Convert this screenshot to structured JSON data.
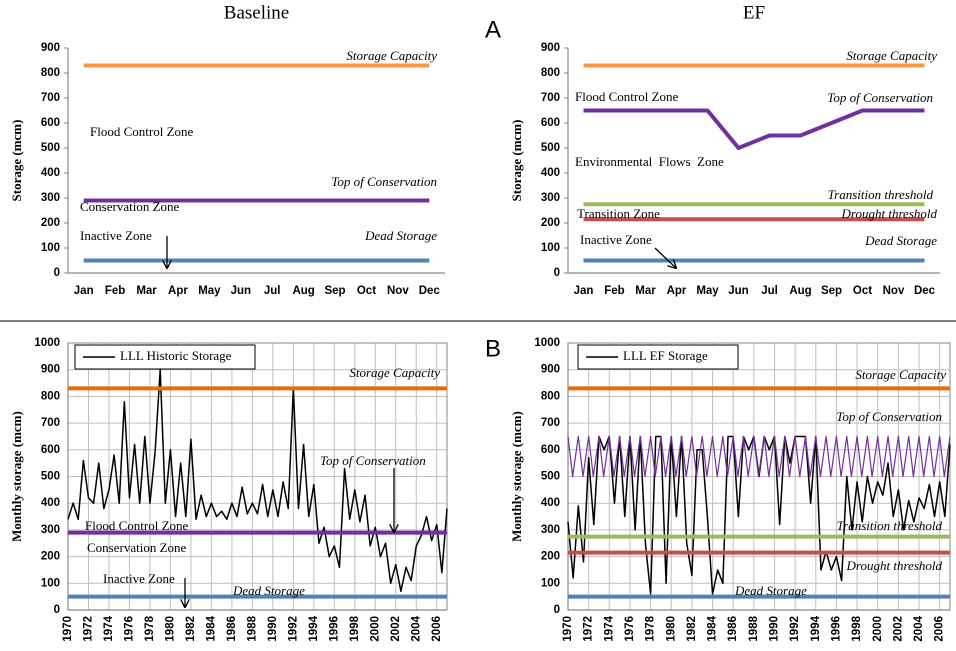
{
  "panel_labels": [
    "A",
    "B"
  ],
  "chart_data": [
    {
      "type": "line",
      "title": "Baseline",
      "y_label": "Storage (mcm)",
      "categories": [
        "Jan",
        "Feb",
        "Mar",
        "Apr",
        "May",
        "Jun",
        "Jul",
        "Aug",
        "Sep",
        "Oct",
        "Nov",
        "Dec"
      ],
      "ylim": [
        0,
        900
      ],
      "yticks": [
        0,
        100,
        200,
        300,
        400,
        500,
        600,
        700,
        800,
        900
      ],
      "grid": false,
      "series": [
        {
          "name": "Storage Capacity",
          "color": "#f79646",
          "values": [
            830,
            830,
            830,
            830,
            830,
            830,
            830,
            830,
            830,
            830,
            830,
            830
          ]
        },
        {
          "name": "Top of Conservation",
          "color": "#7030a0",
          "values": [
            290,
            290,
            290,
            290,
            290,
            290,
            290,
            290,
            290,
            290,
            290,
            290
          ]
        },
        {
          "name": "Dead Storage",
          "color": "#4f81bd",
          "values": [
            50,
            50,
            50,
            50,
            50,
            50,
            50,
            50,
            50,
            50,
            50,
            50
          ]
        }
      ],
      "annotations": [
        "Flood Control Zone",
        "Conservation Zone",
        "Inactive Zone"
      ]
    },
    {
      "type": "line",
      "title": "EF",
      "y_label": "Storage (mcm)",
      "categories": [
        "Jan",
        "Feb",
        "Mar",
        "Apr",
        "May",
        "Jun",
        "Jul",
        "Aug",
        "Sep",
        "Oct",
        "Nov",
        "Dec"
      ],
      "ylim": [
        0,
        900
      ],
      "yticks": [
        0,
        100,
        200,
        300,
        400,
        500,
        600,
        700,
        800,
        900
      ],
      "grid": false,
      "series": [
        {
          "name": "Storage Capacity",
          "color": "#f79646",
          "values": [
            830,
            830,
            830,
            830,
            830,
            830,
            830,
            830,
            830,
            830,
            830,
            830
          ]
        },
        {
          "name": "Top of Conservation",
          "color": "#7030a0",
          "values": [
            650,
            650,
            650,
            650,
            650,
            500,
            550,
            550,
            600,
            650,
            650,
            650
          ]
        },
        {
          "name": "Transition threshold",
          "color": "#9bbb59",
          "values": [
            275,
            275,
            275,
            275,
            275,
            275,
            275,
            275,
            275,
            275,
            275,
            275
          ]
        },
        {
          "name": "Drought threshold",
          "color": "#c0504d",
          "values": [
            215,
            215,
            215,
            215,
            215,
            215,
            215,
            215,
            215,
            215,
            215,
            215
          ]
        },
        {
          "name": "Dead Storage",
          "color": "#4f81bd",
          "values": [
            50,
            50,
            50,
            50,
            50,
            50,
            50,
            50,
            50,
            50,
            50,
            50
          ]
        }
      ],
      "annotations": [
        "Flood Control Zone",
        "Environmental  Flows  Zone",
        "Transition Zone",
        "Inactive Zone"
      ]
    },
    {
      "type": "line",
      "y_label": "Monthly storage (mcm)",
      "xlim": [
        1970,
        2007
      ],
      "xticks": [
        1970,
        1972,
        1974,
        1976,
        1978,
        1980,
        1982,
        1984,
        1986,
        1988,
        1990,
        1992,
        1994,
        1996,
        1998,
        2000,
        2002,
        2004,
        2006
      ],
      "ylim": [
        0,
        1000
      ],
      "yticks": [
        0,
        100,
        200,
        300,
        400,
        500,
        600,
        700,
        800,
        900,
        1000
      ],
      "grid": true,
      "series": [
        {
          "name": "LLL Historic Storage",
          "color": "#000000",
          "x": [
            1970,
            1970.5,
            1971,
            1971.5,
            1972,
            1972.5,
            1973,
            1973.5,
            1974,
            1974.5,
            1975,
            1975.5,
            1976,
            1976.5,
            1977,
            1977.5,
            1978,
            1978.5,
            1979,
            1979.5,
            1980,
            1980.5,
            1981,
            1981.5,
            1982,
            1982.5,
            1983,
            1983.5,
            1984,
            1984.5,
            1985,
            1985.5,
            1986,
            1986.5,
            1987,
            1987.5,
            1988,
            1988.5,
            1989,
            1989.5,
            1990,
            1990.5,
            1991,
            1991.5,
            1992,
            1992.5,
            1993,
            1993.5,
            1994,
            1994.5,
            1995,
            1995.5,
            1996,
            1996.5,
            1997,
            1997.5,
            1998,
            1998.5,
            1999,
            1999.5,
            2000,
            2000.5,
            2001,
            2001.5,
            2002,
            2002.5,
            2003,
            2003.5,
            2004,
            2004.5,
            2005,
            2005.5,
            2006,
            2006.5,
            2007
          ],
          "values": [
            340,
            400,
            340,
            560,
            420,
            400,
            550,
            380,
            450,
            580,
            400,
            780,
            420,
            620,
            400,
            650,
            400,
            590,
            900,
            400,
            600,
            350,
            550,
            350,
            640,
            340,
            430,
            350,
            400,
            350,
            370,
            340,
            400,
            350,
            460,
            360,
            400,
            360,
            470,
            350,
            450,
            350,
            480,
            380,
            830,
            380,
            620,
            350,
            470,
            250,
            310,
            200,
            240,
            160,
            530,
            340,
            450,
            330,
            430,
            240,
            310,
            200,
            250,
            100,
            170,
            70,
            160,
            110,
            240,
            280,
            350,
            260,
            320,
            140,
            380
          ]
        },
        {
          "name": "Storage Capacity",
          "color": "#e46c0a",
          "x": [
            1970,
            2007
          ],
          "values": [
            830,
            830
          ]
        },
        {
          "name": "Top of Conservation",
          "color": "#7030a0",
          "x": [
            1970,
            2007
          ],
          "values": [
            290,
            290
          ]
        },
        {
          "name": "Dead Storage",
          "color": "#4f81bd",
          "x": [
            1970,
            2007
          ],
          "values": [
            50,
            50
          ]
        }
      ],
      "annotations": [
        "Flood Control Zone",
        "Conservation Zone",
        "Inactive Zone"
      ]
    },
    {
      "type": "line",
      "y_label": "Monthly storage (mcm)",
      "xlim": [
        1970,
        2007
      ],
      "xticks": [
        1970,
        1972,
        1974,
        1976,
        1978,
        1980,
        1982,
        1984,
        1986,
        1988,
        1990,
        1992,
        1994,
        1996,
        1998,
        2000,
        2002,
        2004,
        2006
      ],
      "ylim": [
        0,
        1000
      ],
      "yticks": [
        0,
        100,
        200,
        300,
        400,
        500,
        600,
        700,
        800,
        900,
        1000
      ],
      "grid": true,
      "series": [
        {
          "name": "LLL EF Storage",
          "color": "#000000",
          "x": [
            1970,
            1970.5,
            1971,
            1971.5,
            1972,
            1972.5,
            1973,
            1973.5,
            1974,
            1974.5,
            1975,
            1975.5,
            1976,
            1976.5,
            1977,
            1977.5,
            1978,
            1978.5,
            1979,
            1979.5,
            1980,
            1980.5,
            1981,
            1981.5,
            1982,
            1982.5,
            1983,
            1983.5,
            1984,
            1984.5,
            1985,
            1985.5,
            1986,
            1986.5,
            1987,
            1987.5,
            1988,
            1988.5,
            1989,
            1989.5,
            1990,
            1990.5,
            1991,
            1991.5,
            1992,
            1992.5,
            1993,
            1993.5,
            1994,
            1994.5,
            1995,
            1995.5,
            1996,
            1996.5,
            1997,
            1997.5,
            1998,
            1998.5,
            1999,
            1999.5,
            2000,
            2000.5,
            2001,
            2001.5,
            2002,
            2002.5,
            2003,
            2003.5,
            2004,
            2004.5,
            2005,
            2005.5,
            2006,
            2006.5,
            2007
          ],
          "values": [
            330,
            120,
            390,
            180,
            570,
            320,
            650,
            600,
            650,
            400,
            650,
            350,
            650,
            300,
            650,
            250,
            60,
            650,
            650,
            100,
            650,
            350,
            650,
            250,
            130,
            600,
            600,
            350,
            60,
            150,
            100,
            650,
            650,
            350,
            650,
            600,
            650,
            500,
            650,
            600,
            650,
            320,
            650,
            550,
            650,
            650,
            650,
            400,
            650,
            150,
            220,
            150,
            200,
            110,
            500,
            300,
            480,
            330,
            500,
            400,
            480,
            430,
            550,
            350,
            450,
            300,
            410,
            330,
            420,
            380,
            470,
            350,
            480,
            350,
            620
          ]
        },
        {
          "name": "Storage Capacity",
          "color": "#e46c0a",
          "x": [
            1970,
            2007
          ],
          "values": [
            830,
            830
          ]
        },
        {
          "name": "Top of Conservation",
          "color": "#7030a0",
          "x": [
            1970,
            1970.45,
            1971,
            1971.45,
            1972,
            1972.45,
            1973,
            1973.45,
            1974,
            1974.45,
            1975,
            1975.45,
            1976,
            1976.45,
            1977,
            1977.45,
            1978,
            1978.45,
            1979,
            1979.45,
            1980,
            1980.45,
            1981,
            1981.45,
            1982,
            1982.45,
            1983,
            1983.45,
            1984,
            1984.45,
            1985,
            1985.45,
            1986,
            1986.45,
            1987,
            1987.45,
            1988,
            1988.45,
            1989,
            1989.45,
            1990,
            1990.45,
            1991,
            1991.45,
            1992,
            1992.45,
            1993,
            1993.45,
            1994,
            1994.45,
            1995,
            1995.45,
            1996,
            1996.45,
            1997,
            1997.45,
            1998,
            1998.45,
            1999,
            1999.45,
            2000,
            2000.45,
            2001,
            2001.45,
            2002,
            2002.45,
            2003,
            2003.45,
            2004,
            2004.45,
            2005,
            2005.45,
            2006,
            2006.45,
            2007
          ],
          "values": [
            650,
            500,
            650,
            500,
            650,
            500,
            650,
            500,
            650,
            500,
            650,
            500,
            650,
            500,
            650,
            500,
            650,
            500,
            650,
            500,
            650,
            500,
            650,
            500,
            650,
            500,
            650,
            500,
            650,
            500,
            650,
            500,
            650,
            500,
            650,
            500,
            650,
            500,
            650,
            500,
            650,
            500,
            650,
            500,
            650,
            500,
            650,
            500,
            650,
            500,
            650,
            500,
            650,
            500,
            650,
            500,
            650,
            500,
            650,
            500,
            650,
            500,
            650,
            500,
            650,
            500,
            650,
            500,
            650,
            500,
            650,
            500,
            650,
            500,
            650
          ]
        },
        {
          "name": "Transition threshold",
          "color": "#9bbb59",
          "x": [
            1970,
            2007
          ],
          "values": [
            275,
            275
          ]
        },
        {
          "name": "Drought threshold",
          "color": "#c0504d",
          "x": [
            1970,
            2007
          ],
          "values": [
            215,
            215
          ]
        },
        {
          "name": "Dead Storage",
          "color": "#4f81bd",
          "x": [
            1970,
            2007
          ],
          "values": [
            50,
            50
          ]
        }
      ]
    }
  ]
}
